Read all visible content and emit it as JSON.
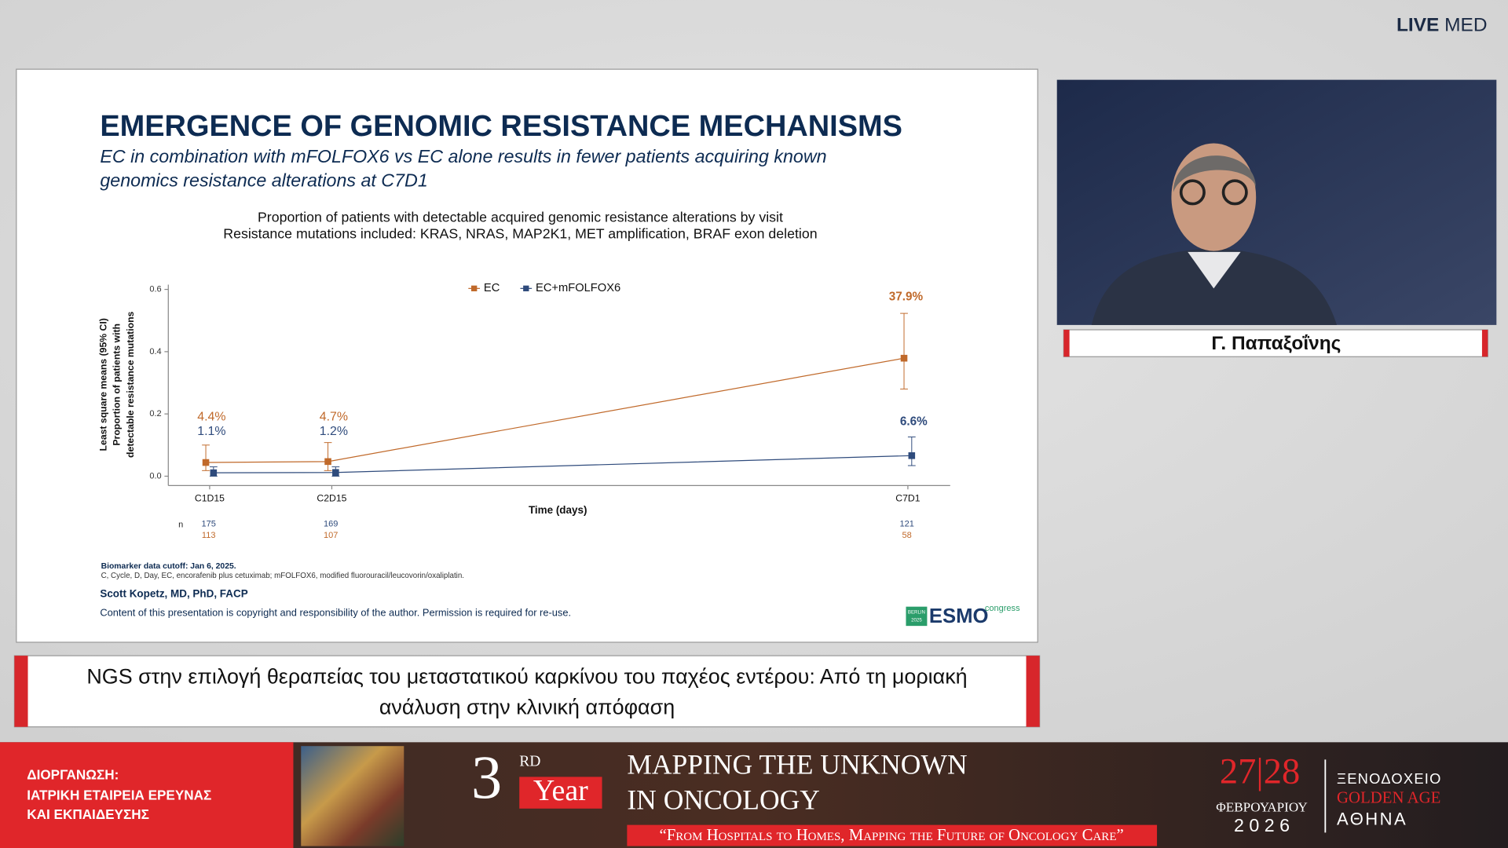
{
  "header": {
    "logo_bold": "LIVE",
    "logo_light": "MED"
  },
  "slide": {
    "title": "EMERGENCE OF GENOMIC RESISTANCE MECHANISMS",
    "subtitle_lines": [
      "EC in combination with mFOLFOX6 vs EC alone results in fewer patients acquiring known",
      "genomics resistance alterations at C7D1"
    ],
    "footnote_bold": "Biomarker data cutoff: Jan 6, 2025.",
    "footnote": "C, Cycle, D, Day, EC, encorafenib plus cetuximab; mFOLFOX6, modified fluorouracil/leucovorin/oxaliplatin.",
    "author": "Scott Kopetz, MD, PhD, FACP",
    "copyright": "Content of this presentation is copyright and responsibility of the author. Permission is required for re-use.",
    "logo": {
      "city": "BERLIN",
      "year": "2025",
      "name": "ESMO",
      "suffix": "congress"
    }
  },
  "chart_data": {
    "type": "line",
    "title_lines": [
      "Proportion of patients with detectable acquired genomic resistance alterations by visit",
      "Resistance mutations included: KRAS, NRAS, MAP2K1, MET amplification, BRAF exon deletion"
    ],
    "x_label": "Time (days)",
    "y_label_lines": [
      "Least square means (95% CI)",
      "Proportion of patients with",
      "detectable resistance mutations"
    ],
    "categories": [
      "C1D15",
      "C2D15",
      "C7D1"
    ],
    "ylim": [
      -0.03,
      0.6
    ],
    "yticks": [
      {
        "value": 0,
        "label": "0.0"
      },
      0.2,
      0.4,
      0.6
    ],
    "legend": "top",
    "n_label": "n",
    "series": [
      {
        "name": "EC",
        "color": "#c0692a",
        "values": [
          0.044,
          0.047,
          0.379
        ],
        "value_labels": [
          "4.4%",
          "4.7%",
          "37.9%"
        ],
        "lower": [
          0.018,
          0.018,
          0.28
        ],
        "upper": [
          0.1,
          0.108,
          0.523
        ],
        "n": [
          113,
          107,
          58
        ]
      },
      {
        "name": "EC+mFOLFOX6",
        "color": "#2f4b7c",
        "values": [
          0.011,
          0.012,
          0.066
        ],
        "value_labels": [
          "1.1%",
          "1.2%",
          "6.6%"
        ],
        "lower": [
          0,
          0,
          0.034
        ],
        "upper": [
          0.03,
          0.03,
          0.126
        ],
        "n": [
          175,
          169,
          121
        ]
      }
    ]
  },
  "speaker": {
    "name": "Γ. Παπαξοΐνης"
  },
  "caption": {
    "lines": [
      "NGS στην επιλογή θεραπείας του μεταστατικού καρκίνου του παχέος εντέρου: Από τη μοριακή",
      "ανάλυση στην κλινική απόφαση"
    ]
  },
  "banner": {
    "organizer_lines": [
      "ΔΙΟΡΓΑΝΩΣΗ:",
      "ΙΑΤΡΙΚΗ ΕΤΑΙΡΕΙΑ ΕΡΕΥΝΑΣ",
      "ΚΑΙ ΕΚΠΑΙΔΕΥΣΗΣ"
    ],
    "edition_number": "3",
    "edition_suffix": "RD",
    "edition_word": "Year",
    "title_lines": [
      "MAPPING THE UNKNOWN",
      "IN ONCOLOGY"
    ],
    "tagline": "“From Hospitals to Homes, Mapping the Future of Oncology Care”",
    "dates": "27|28",
    "month": "ΦΕΒΡΟΥΑΡΙΟΥ",
    "year": "2 0 2 6",
    "venue_lines": [
      "ΞΕΝΟΔΟΧΕΙΟ",
      "GOLDEN AGE",
      "ΑΘΗΝΑ"
    ]
  }
}
